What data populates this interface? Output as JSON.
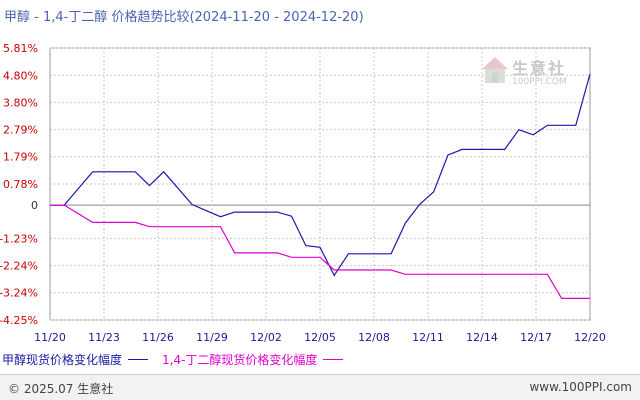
{
  "title": "甲醇 - 1,4-丁二醇 价格趋势比较(2024-11-20 - 2024-12-20)",
  "watermark": {
    "text": "生意社",
    "sub": "100PPI.COM"
  },
  "footer": {
    "copyright": "© 2025.07 生意社",
    "site": "www.100PPI.com"
  },
  "colors": {
    "series1": "#1a1aa8",
    "series2": "#e000d0",
    "positive_tick": "#cc0000",
    "negative_tick": "#cc0000",
    "zero_tick": "#333333",
    "x_tick": "#1a1a99",
    "grid": "#c8c8c8",
    "title": "#4a63b3"
  },
  "chart_data": {
    "type": "line",
    "x_ticks": [
      "11/20",
      "11/23",
      "11/26",
      "11/29",
      "12/02",
      "12/05",
      "12/08",
      "12/11",
      "12/14",
      "12/17",
      "12/20"
    ],
    "y_ticks": [
      "5.81%",
      "4.80%",
      "3.80%",
      "2.79%",
      "1.79%",
      "0.78%",
      "0",
      "-1.23%",
      "-2.24%",
      "-3.24%",
      "-4.25%"
    ],
    "y_tick_values": [
      5.81,
      4.8,
      3.8,
      2.79,
      1.79,
      0.78,
      0,
      -1.23,
      -2.24,
      -3.24,
      -4.25
    ],
    "ylim": [
      -4.25,
      5.81
    ],
    "grid": true,
    "legend_position": "bottom-left",
    "x_range_days": [
      0,
      30
    ],
    "series": [
      {
        "name": "甲醇现货价格变化幅度",
        "points": [
          [
            0,
            0
          ],
          [
            1,
            0
          ],
          [
            3,
            1.23
          ],
          [
            5,
            1.23
          ],
          [
            6,
            1.23
          ],
          [
            7,
            0.72
          ],
          [
            8,
            1.23
          ],
          [
            10,
            0.02
          ],
          [
            12,
            -0.43
          ],
          [
            13,
            -0.26
          ],
          [
            15,
            -0.26
          ],
          [
            16,
            -0.26
          ],
          [
            17,
            -0.41
          ],
          [
            18,
            -1.5
          ],
          [
            19,
            -1.56
          ],
          [
            20,
            -2.6
          ],
          [
            21,
            -1.8
          ],
          [
            22,
            -1.8
          ],
          [
            24,
            -1.8
          ],
          [
            25,
            -0.67
          ],
          [
            26,
            0.02
          ],
          [
            27,
            0.49
          ],
          [
            28,
            1.85
          ],
          [
            29,
            2.06
          ],
          [
            31,
            2.06
          ],
          [
            32,
            2.06
          ],
          [
            33,
            2.79
          ],
          [
            34,
            2.6
          ],
          [
            35,
            2.95
          ],
          [
            36,
            2.95
          ],
          [
            37,
            2.95
          ],
          [
            38,
            4.85
          ]
        ]
      },
      {
        "name": "1,4-丁二醇现货价格变化幅度",
        "points": [
          [
            0,
            0
          ],
          [
            1,
            0
          ],
          [
            3,
            -0.64
          ],
          [
            5,
            -0.64
          ],
          [
            6,
            -0.64
          ],
          [
            7,
            -0.8
          ],
          [
            9,
            -0.8
          ],
          [
            11,
            -0.8
          ],
          [
            12,
            -0.8
          ],
          [
            13,
            -1.77
          ],
          [
            15,
            -1.77
          ],
          [
            16,
            -1.77
          ],
          [
            17,
            -1.93
          ],
          [
            18,
            -1.93
          ],
          [
            19,
            -1.93
          ],
          [
            20,
            -2.4
          ],
          [
            21,
            -2.4
          ],
          [
            22,
            -2.4
          ],
          [
            24,
            -2.4
          ],
          [
            25,
            -2.56
          ],
          [
            27,
            -2.56
          ],
          [
            35,
            -2.56
          ],
          [
            36,
            -3.45
          ],
          [
            38,
            -3.45
          ]
        ]
      }
    ]
  }
}
